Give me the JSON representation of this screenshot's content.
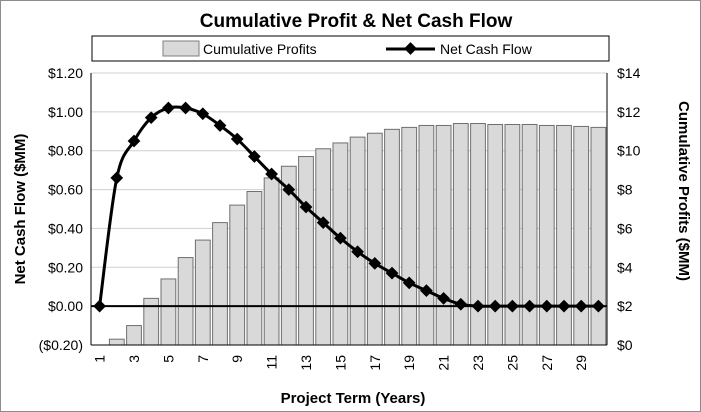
{
  "chart_data": {
    "type": "bar+line",
    "title": "Cumulative Profit & Net Cash Flow",
    "xlabel": "Project Term (Years)",
    "ylabel_left": "Net Cash Flow ($MM)",
    "ylabel_right": "Cumulative Profits ($MM)",
    "legend": {
      "placement": "top",
      "entries": [
        "Cumulative Profits",
        "Net Cash Flow"
      ]
    },
    "x": [
      1,
      2,
      3,
      4,
      5,
      6,
      7,
      8,
      9,
      10,
      11,
      12,
      13,
      14,
      15,
      16,
      17,
      18,
      19,
      20,
      21,
      22,
      23,
      24,
      25,
      26,
      27,
      28,
      29,
      30
    ],
    "x_tick_labels": [
      "1",
      "3",
      "5",
      "7",
      "9",
      "11",
      "13",
      "15",
      "17",
      "19",
      "21",
      "23",
      "25",
      "27",
      "29"
    ],
    "y_left": {
      "range": [
        -0.2,
        1.2
      ],
      "ticks": [
        "($0.20)",
        "$0.00",
        "$0.20",
        "$0.40",
        "$0.60",
        "$0.80",
        "$1.00",
        "$1.20"
      ]
    },
    "y_right": {
      "range": [
        0,
        14
      ],
      "ticks": [
        "$0",
        "$2",
        "$4",
        "$6",
        "$8",
        "$10",
        "$12",
        "$14"
      ]
    },
    "series": [
      {
        "name": "Cumulative Profits",
        "kind": "bar",
        "axis": "right",
        "values": [
          0.0,
          0.3,
          1.0,
          2.4,
          3.4,
          4.5,
          5.4,
          6.3,
          7.2,
          7.9,
          8.6,
          9.2,
          9.7,
          10.1,
          10.4,
          10.7,
          10.9,
          11.1,
          11.2,
          11.3,
          11.3,
          11.4,
          11.4,
          11.35,
          11.35,
          11.35,
          11.3,
          11.3,
          11.25,
          11.2
        ],
        "color": "#d9d9d9"
      },
      {
        "name": "Net Cash Flow",
        "kind": "line",
        "axis": "left",
        "values": [
          0.0,
          0.66,
          0.85,
          0.97,
          1.02,
          1.02,
          0.99,
          0.93,
          0.86,
          0.77,
          0.68,
          0.6,
          0.51,
          0.43,
          0.35,
          0.28,
          0.22,
          0.17,
          0.12,
          0.08,
          0.04,
          0.01,
          0.0,
          0.0,
          0.0,
          0.0,
          0.0,
          0.0,
          0.0,
          0.0
        ],
        "color": "#000000"
      }
    ],
    "grid": {
      "horizontal": true,
      "vertical": false
    }
  }
}
